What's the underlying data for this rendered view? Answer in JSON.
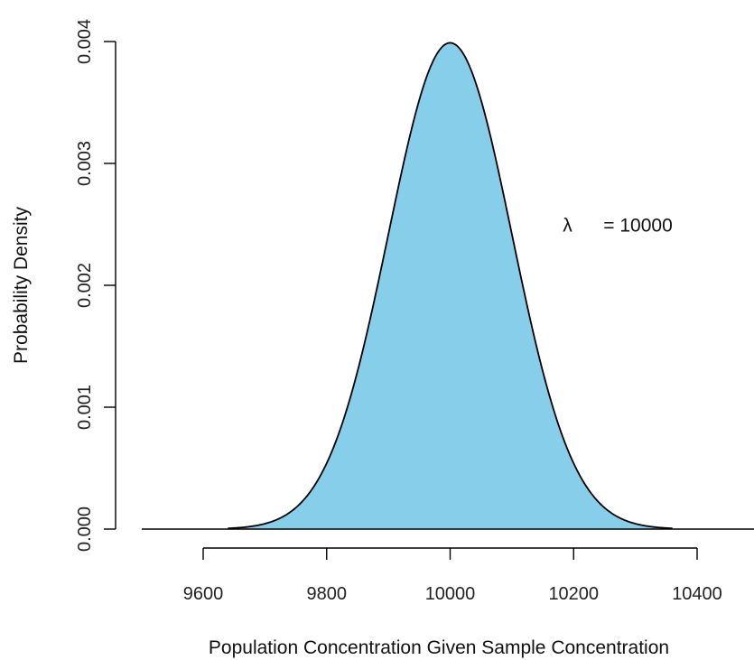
{
  "chart_data": {
    "type": "area",
    "title": "",
    "xlabel": "Population Concentration Given Sample Concentration",
    "ylabel": "Probability Density",
    "xlim": [
      9500,
      10500
    ],
    "ylim": [
      0,
      0.004
    ],
    "x_ticks": [
      "9600",
      "9800",
      "10000",
      "10200",
      "10400"
    ],
    "y_ticks": [
      "0.000",
      "0.001",
      "0.002",
      "0.003",
      "0.004"
    ],
    "curve": {
      "distribution": "normal",
      "mean": 10000,
      "sd": 100,
      "x_range": [
        9640,
        10360
      ],
      "fill_color": "#87CEEB",
      "line_color": "#000000"
    },
    "annotation": {
      "symbol": "λ",
      "text": "= 10000",
      "x": 10200,
      "y": 0.0025
    },
    "grid": false,
    "legend": "none"
  }
}
